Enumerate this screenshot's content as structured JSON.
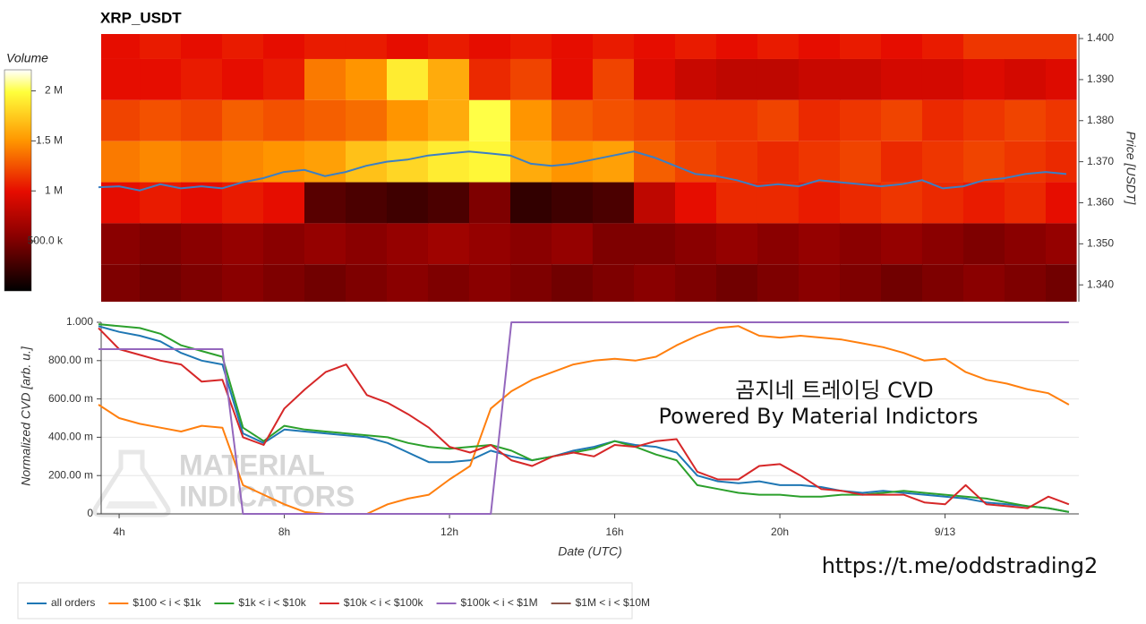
{
  "chart_data": [
    {
      "type": "heatmap",
      "title": "XRP_USDT",
      "x": [
        4,
        5,
        6,
        7,
        8,
        9,
        10,
        11,
        12,
        13,
        14,
        15,
        16,
        17,
        18,
        19,
        20,
        21,
        22,
        23,
        24,
        25,
        26,
        27
      ],
      "y": [
        1.4,
        1.39,
        1.38,
        1.37,
        1.36,
        1.35,
        1.34
      ],
      "z": [
        [
          1000000,
          1050000,
          1000000,
          1050000,
          1000000,
          1050000,
          1050000,
          1000000,
          1050000,
          1000000,
          1050000,
          1000000,
          1050000,
          1000000,
          1050000,
          1000000,
          1050000,
          1000000,
          1050000,
          1000000,
          1050000,
          1150000,
          1150000,
          1150000
        ],
        [
          1000000,
          1000000,
          1050000,
          1000000,
          1050000,
          1400000,
          1500000,
          1900000,
          1600000,
          1100000,
          1200000,
          1000000,
          1200000,
          950000,
          850000,
          800000,
          800000,
          850000,
          850000,
          900000,
          900000,
          950000,
          900000,
          950000
        ],
        [
          1200000,
          1250000,
          1200000,
          1300000,
          1250000,
          1300000,
          1350000,
          1500000,
          1600000,
          2000000,
          1500000,
          1300000,
          1250000,
          1200000,
          1150000,
          1150000,
          1200000,
          1100000,
          1150000,
          1200000,
          1100000,
          1150000,
          1200000,
          1150000
        ],
        [
          1400000,
          1450000,
          1400000,
          1450000,
          1500000,
          1550000,
          1700000,
          1800000,
          1900000,
          1950000,
          1600000,
          1500000,
          1550000,
          1300000,
          1200000,
          1150000,
          1100000,
          1150000,
          1200000,
          1100000,
          1150000,
          1200000,
          1150000,
          1100000
        ],
        [
          1000000,
          1050000,
          1000000,
          1050000,
          1000000,
          350000,
          300000,
          250000,
          300000,
          500000,
          200000,
          250000,
          300000,
          800000,
          1000000,
          1100000,
          1100000,
          1050000,
          1100000,
          1150000,
          1100000,
          1050000,
          1100000,
          1000000
        ],
        [
          550000,
          500000,
          550000,
          600000,
          550000,
          600000,
          550000,
          600000,
          650000,
          600000,
          550000,
          600000,
          500000,
          500000,
          550000,
          600000,
          550000,
          600000,
          550000,
          600000,
          550000,
          500000,
          550000,
          600000
        ],
        [
          500000,
          450000,
          500000,
          550000,
          500000,
          450000,
          500000,
          550000,
          500000,
          550000,
          500000,
          450000,
          500000,
          550000,
          500000,
          450000,
          500000,
          550000,
          500000,
          450000,
          500000,
          550000,
          500000,
          450000
        ]
      ],
      "colorbar_title": "Volume",
      "zlim": [
        0,
        2210000
      ],
      "zticks": [
        {
          "value": 500000,
          "label": "500.0 k"
        },
        {
          "value": 1000000,
          "label": "1 M"
        },
        {
          "value": 1500000,
          "label": "1.5 M"
        },
        {
          "value": 2000000,
          "label": "2 M"
        }
      ],
      "xlim": [
        3.565,
        27.24
      ],
      "ylim": [
        1.3359,
        1.4011
      ],
      "y_side": "right",
      "ylabel": "Price [USDT]",
      "yticks": [
        {
          "value": 1.34,
          "label": "1.340"
        },
        {
          "value": 1.35,
          "label": "1.350"
        },
        {
          "value": 1.36,
          "label": "1.360"
        },
        {
          "value": 1.37,
          "label": "1.370"
        },
        {
          "value": 1.38,
          "label": "1.380"
        },
        {
          "value": 1.39,
          "label": "1.390"
        },
        {
          "value": 1.4,
          "label": "1.400"
        }
      ],
      "series": [
        {
          "color": "#3b7fc4",
          "x": [
            3.5,
            4,
            4.5,
            5,
            5.5,
            6,
            6.5,
            7,
            7.5,
            8,
            8.5,
            9,
            9.5,
            10,
            10.5,
            11,
            11.5,
            12,
            12.5,
            13,
            13.5,
            14,
            14.5,
            15,
            15.5,
            16,
            16.5,
            17,
            17.5,
            18,
            18.5,
            19,
            19.5,
            20,
            20.5,
            21,
            21.5,
            22,
            22.5,
            23,
            23.5,
            24,
            24.5,
            25,
            25.5,
            26,
            26.5,
            27
          ],
          "values": [
            1.3638,
            1.364,
            1.363,
            1.3645,
            1.3635,
            1.364,
            1.3635,
            1.365,
            1.366,
            1.3675,
            1.368,
            1.3665,
            1.3675,
            1.369,
            1.37,
            1.3705,
            1.3715,
            1.372,
            1.3725,
            1.372,
            1.3715,
            1.3695,
            1.369,
            1.3695,
            1.3705,
            1.3715,
            1.3725,
            1.371,
            1.369,
            1.367,
            1.3665,
            1.3655,
            1.364,
            1.3645,
            1.364,
            1.3655,
            1.365,
            1.3645,
            1.364,
            1.3645,
            1.3655,
            1.3635,
            1.364,
            1.3655,
            1.366,
            1.367,
            1.3675,
            1.367
          ]
        }
      ]
    },
    {
      "type": "line",
      "xlabel": "Date (UTC)",
      "ylabel": "Normalized CVD [arb. u.]",
      "x": [
        3.5,
        4,
        4.5,
        5,
        5.5,
        6,
        6.5,
        7,
        7.5,
        8,
        8.5,
        9,
        9.5,
        10,
        10.5,
        11,
        11.5,
        12,
        12.5,
        13,
        13.5,
        14,
        14.5,
        15,
        15.5,
        16,
        16.5,
        17,
        17.5,
        18,
        18.5,
        19,
        19.5,
        20,
        20.5,
        21,
        21.5,
        22,
        22.5,
        23,
        23.5,
        24,
        24.5,
        25,
        25.5,
        26,
        26.5,
        27
      ],
      "xlim": [
        3.565,
        27.24
      ],
      "xticks": [
        {
          "value": 4,
          "label": "4h"
        },
        {
          "value": 8,
          "label": "8h"
        },
        {
          "value": 12,
          "label": "12h"
        },
        {
          "value": 16,
          "label": "16h"
        },
        {
          "value": 20,
          "label": "20h"
        },
        {
          "value": 24,
          "label": "9/13"
        }
      ],
      "ylim": [
        0,
        1
      ],
      "yticks": [
        0,
        {
          "value": 0.2,
          "label": "200.00 m"
        },
        {
          "value": 0.4,
          "label": "400.00 m"
        },
        {
          "value": 0.6,
          "label": "600.00 m"
        },
        {
          "value": 0.8,
          "label": "800.00 m"
        },
        {
          "value": 1,
          "label": "1.000"
        }
      ],
      "grid": true,
      "legend": "bottom-left",
      "watermark": [
        "MATERIAL",
        "INDICATORS"
      ],
      "series": [
        {
          "name": "all orders",
          "color": "#1f77b4",
          "values": [
            0.98,
            0.95,
            0.93,
            0.9,
            0.84,
            0.8,
            0.78,
            0.42,
            0.37,
            0.44,
            0.43,
            0.42,
            0.41,
            0.4,
            0.37,
            0.32,
            0.27,
            0.27,
            0.28,
            0.33,
            0.3,
            0.28,
            0.3,
            0.33,
            0.35,
            0.38,
            0.36,
            0.35,
            0.32,
            0.2,
            0.17,
            0.16,
            0.17,
            0.15,
            0.15,
            0.14,
            0.12,
            0.11,
            0.12,
            0.11,
            0.1,
            0.09,
            0.08,
            0.06,
            0.05,
            0.04,
            0.03,
            0.01
          ]
        },
        {
          "name": "$100 < i < $1k",
          "color": "#ff7f0e",
          "values": [
            0.57,
            0.5,
            0.47,
            0.45,
            0.43,
            0.46,
            0.45,
            0.15,
            0.1,
            0.05,
            0.01,
            0,
            0,
            0,
            0.05,
            0.08,
            0.1,
            0.18,
            0.25,
            0.55,
            0.64,
            0.7,
            0.74,
            0.78,
            0.8,
            0.81,
            0.8,
            0.82,
            0.88,
            0.93,
            0.97,
            0.98,
            0.93,
            0.92,
            0.93,
            0.92,
            0.91,
            0.89,
            0.87,
            0.84,
            0.8,
            0.81,
            0.74,
            0.7,
            0.68,
            0.65,
            0.63,
            0.57
          ]
        },
        {
          "name": "$1k < i < $10k",
          "color": "#2ca02c",
          "values": [
            0.99,
            0.98,
            0.97,
            0.94,
            0.88,
            0.85,
            0.82,
            0.45,
            0.38,
            0.46,
            0.44,
            0.43,
            0.42,
            0.41,
            0.4,
            0.37,
            0.35,
            0.34,
            0.35,
            0.36,
            0.33,
            0.28,
            0.3,
            0.32,
            0.34,
            0.38,
            0.35,
            0.31,
            0.28,
            0.15,
            0.13,
            0.11,
            0.1,
            0.1,
            0.09,
            0.09,
            0.1,
            0.1,
            0.11,
            0.12,
            0.11,
            0.1,
            0.09,
            0.08,
            0.06,
            0.04,
            0.03,
            0.01
          ]
        },
        {
          "name": "$10k < i < $100k",
          "color": "#d62728",
          "values": [
            0.97,
            0.86,
            0.83,
            0.8,
            0.78,
            0.69,
            0.7,
            0.4,
            0.36,
            0.55,
            0.65,
            0.74,
            0.78,
            0.62,
            0.58,
            0.52,
            0.45,
            0.35,
            0.32,
            0.36,
            0.28,
            0.25,
            0.3,
            0.32,
            0.3,
            0.36,
            0.35,
            0.38,
            0.39,
            0.22,
            0.18,
            0.18,
            0.25,
            0.26,
            0.2,
            0.13,
            0.12,
            0.1,
            0.1,
            0.1,
            0.06,
            0.05,
            0.15,
            0.05,
            0.04,
            0.03,
            0.09,
            0.05
          ]
        },
        {
          "name": "$100k < i < $1M",
          "color": "#9467bd",
          "values": [
            0.86,
            0.86,
            0.86,
            0.86,
            0.86,
            0.86,
            0.86,
            0,
            0,
            0,
            0,
            0,
            0,
            0,
            0,
            0,
            0,
            0,
            0,
            0,
            1,
            1,
            1,
            1,
            1,
            1,
            1,
            1,
            1,
            1,
            1,
            1,
            1,
            1,
            1,
            1,
            1,
            1,
            1,
            1,
            1,
            1,
            1,
            1,
            1,
            1,
            1,
            1
          ]
        },
        {
          "name": "$1M < i < $10M",
          "color": "#8c564b",
          "values": [
            null,
            null,
            null,
            null,
            null,
            null,
            null,
            null,
            null,
            null,
            null,
            null,
            null,
            null,
            null,
            null,
            null,
            null,
            null,
            null,
            null,
            null,
            null,
            null,
            null,
            null,
            null,
            null,
            null,
            null,
            null,
            null,
            null,
            null,
            null,
            null,
            null,
            null,
            null,
            null,
            null,
            null,
            null,
            null,
            null,
            null,
            null,
            null
          ]
        }
      ]
    }
  ],
  "annotations": [
    "곰지네 트레이딩 CVD",
    "Powered By Material Indictors",
    "https://t.me/oddstrading2"
  ]
}
